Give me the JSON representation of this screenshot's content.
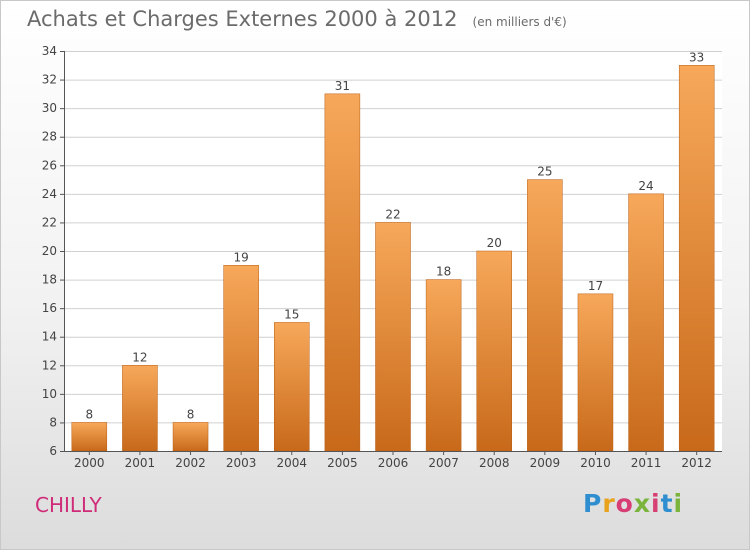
{
  "title": "Achats et Charges Externes 2000 à 2012",
  "subtitle": "(en milliers d'€)",
  "commune": "CHILLY",
  "logo": {
    "text": "Proxiti",
    "letter_colors": [
      "#2f8ed0",
      "#e8a21c",
      "#d73f74",
      "#7ab43b",
      "#d73f74",
      "#2f8ed0",
      "#7ab43b"
    ]
  },
  "colors": {
    "bar_top": "#f7a85a",
    "bar_bottom": "#c8691a",
    "bar_edge": "#b65d14",
    "grid": "#d0d0d0",
    "axis": "#555555",
    "commune": "#cf2b78"
  },
  "chart_data": {
    "type": "bar",
    "categories": [
      "2000",
      "2001",
      "2002",
      "2003",
      "2004",
      "2005",
      "2006",
      "2007",
      "2008",
      "2009",
      "2010",
      "2011",
      "2012"
    ],
    "values": [
      8,
      12,
      8,
      19,
      15,
      31,
      22,
      18,
      20,
      25,
      17,
      24,
      33
    ],
    "ylim": [
      6,
      34
    ],
    "yticks": [
      6,
      8,
      10,
      12,
      14,
      16,
      18,
      20,
      22,
      24,
      26,
      28,
      30,
      32,
      34
    ],
    "grid": true,
    "data_labels": true
  }
}
